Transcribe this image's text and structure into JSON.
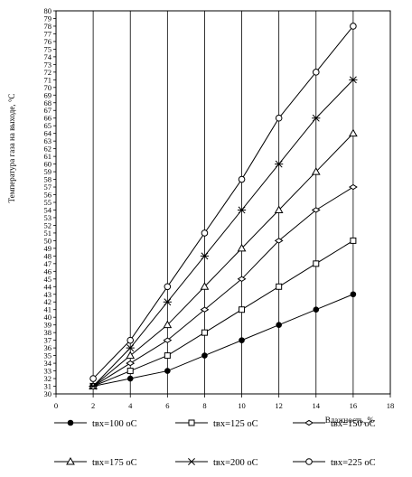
{
  "chart_data": {
    "type": "line",
    "xlabel": "Влажность, %",
    "ylabel": "Температура газа на выходе, °С",
    "xlim": [
      0,
      18
    ],
    "ylim": [
      30,
      80
    ],
    "x_ticks": [
      "0",
      "2",
      "4",
      "6",
      "8",
      "10",
      "12",
      "14",
      "16",
      "18"
    ],
    "y_ticks": [
      "30",
      "31",
      "32",
      "33",
      "34",
      "35",
      "36",
      "37",
      "38",
      "39",
      "40",
      "41",
      "42",
      "43",
      "44",
      "45",
      "46",
      "47",
      "48",
      "49",
      "50",
      "51",
      "52",
      "53",
      "54",
      "55",
      "56",
      "57",
      "58",
      "59",
      "60",
      "61",
      "62",
      "63",
      "64",
      "65",
      "66",
      "67",
      "68",
      "69",
      "70",
      "71",
      "72",
      "73",
      "74",
      "75",
      "76",
      "77",
      "78",
      "79",
      "80"
    ],
    "grid": "vertical",
    "legend_position": "bottom",
    "x": [
      2,
      4,
      6,
      8,
      10,
      12,
      14,
      16
    ],
    "series": [
      {
        "name": "tвх=100 оС",
        "marker": "filled-circle",
        "values": [
          31,
          32,
          33,
          35,
          37,
          39,
          41,
          43
        ]
      },
      {
        "name": "tвх=125 оС",
        "marker": "square",
        "values": [
          31,
          33,
          35,
          38,
          41,
          44,
          47,
          50
        ]
      },
      {
        "name": "tвх=150 оС",
        "marker": "diamond",
        "values": [
          31,
          34,
          37,
          41,
          45,
          50,
          54,
          57
        ]
      },
      {
        "name": "tвх=175 оС",
        "marker": "triangle",
        "values": [
          31,
          35,
          39,
          44,
          49,
          54,
          59,
          64
        ]
      },
      {
        "name": "tвх=200 оС",
        "marker": "star",
        "values": [
          31,
          36,
          42,
          48,
          54,
          60,
          66,
          71
        ]
      },
      {
        "name": "tвх=225 оС",
        "marker": "open-circle",
        "values": [
          32,
          37,
          44,
          51,
          58,
          66,
          72,
          78
        ]
      }
    ]
  }
}
